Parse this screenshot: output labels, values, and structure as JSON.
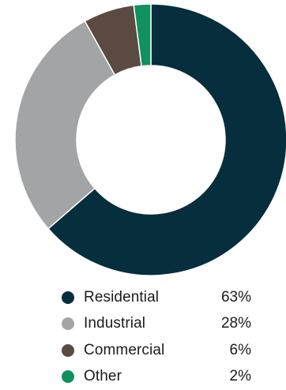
{
  "chart_data": {
    "type": "pie",
    "title": "",
    "categories": [
      "Residential",
      "Industrial",
      "Commercial",
      "Other"
    ],
    "values": [
      63,
      28,
      6,
      2
    ],
    "value_labels": [
      "63%",
      "28%",
      "6%",
      "2%"
    ],
    "colors": [
      "#062e3d",
      "#a3a4a6",
      "#5b4a42",
      "#10915e"
    ],
    "donut": true,
    "legend_position": "bottom"
  },
  "legend": {
    "items": [
      {
        "label": "Residential",
        "value": "63%",
        "color": "#062e3d"
      },
      {
        "label": "Industrial",
        "value": "28%",
        "color": "#a3a4a6"
      },
      {
        "label": "Commercial",
        "value": "6%",
        "color": "#5b4a42"
      },
      {
        "label": "Other",
        "value": "2%",
        "color": "#10915e"
      }
    ]
  }
}
